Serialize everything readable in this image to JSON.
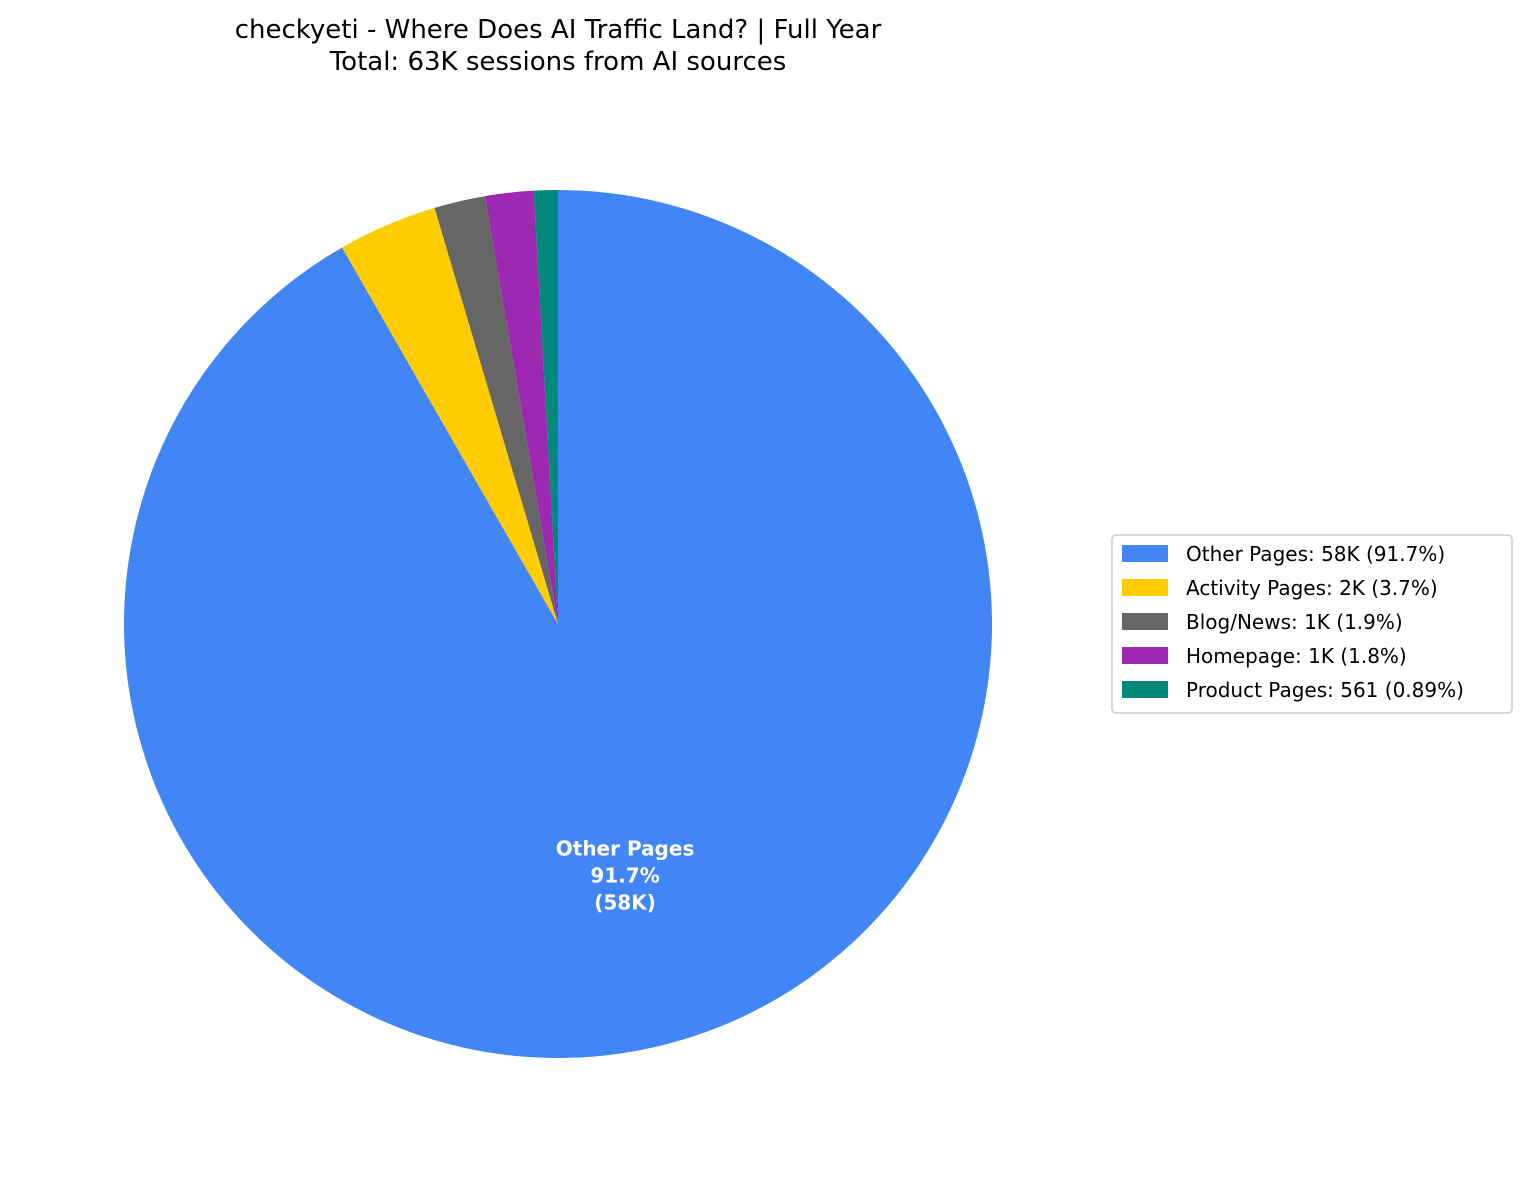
{
  "chart_data": {
    "type": "pie",
    "title": "checkyeti - Where Does AI Traffic Land? | Full Year",
    "subtitle": "Total: 63K sessions from AI sources",
    "legend_position": "right",
    "start_angle": "90 (top), clockwise",
    "slices": [
      {
        "label": "Other Pages",
        "value": 58000,
        "percent": 91.7,
        "color": "#4285F4",
        "legend_text": "Other Pages: 58K (91.7%)",
        "inner_label": [
          "Other Pages",
          "91.7%",
          "(58K)"
        ]
      },
      {
        "label": "Activity Pages",
        "value": 2000,
        "percent": 3.7,
        "color": "#FFCC00",
        "legend_text": "Activity Pages: 2K (3.7%)",
        "inner_label": []
      },
      {
        "label": "Blog/News",
        "value": 1000,
        "percent": 1.9,
        "color": "#666666",
        "legend_text": "Blog/News: 1K (1.9%)",
        "inner_label": []
      },
      {
        "label": "Homepage",
        "value": 1000,
        "percent": 1.8,
        "color": "#9C27B0",
        "legend_text": "Homepage: 1K (1.8%)",
        "inner_label": []
      },
      {
        "label": "Product Pages",
        "value": 561,
        "percent": 0.89,
        "color": "#00897B",
        "legend_text": "Product Pages: 561 (0.89%)",
        "inner_label": []
      }
    ]
  }
}
